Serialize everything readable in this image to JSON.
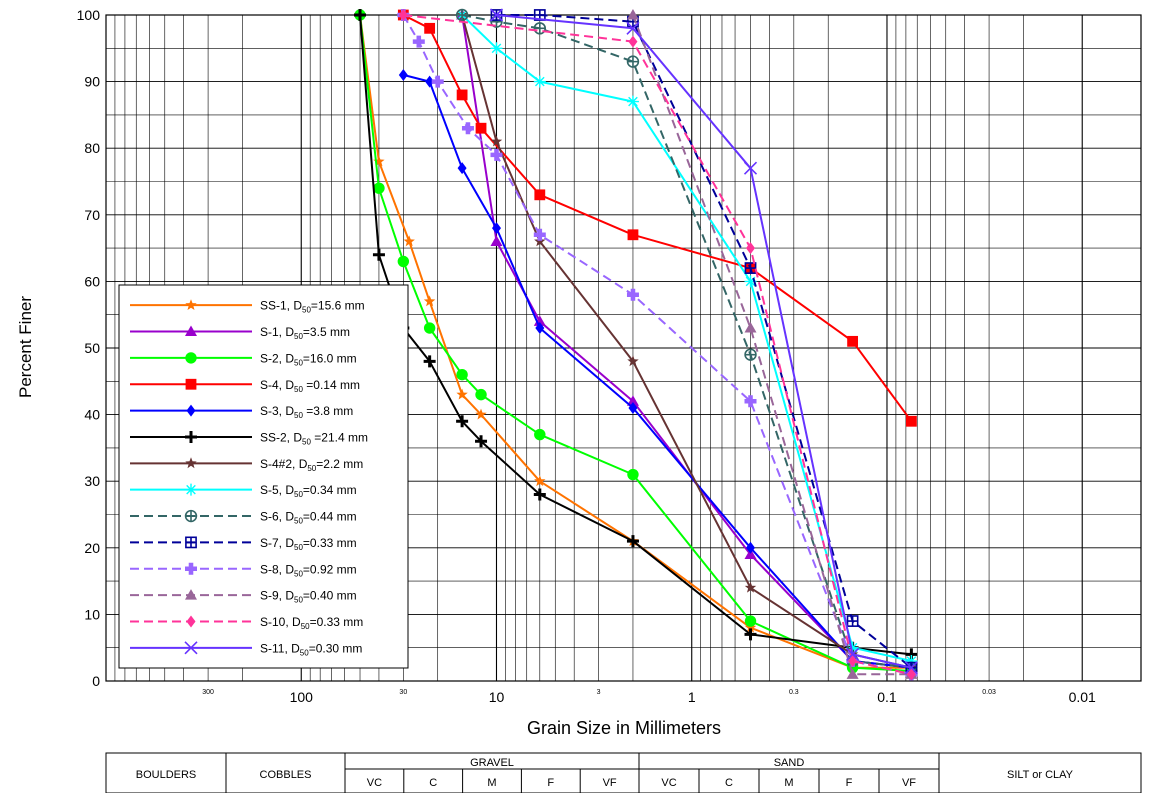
{
  "chart_data": {
    "type": "line",
    "ylabel": "Percent Finer",
    "xlabel": "Grain Size in Millimeters",
    "x_scale": "log",
    "x_reversed": true,
    "xlim": [
      1000,
      0.005
    ],
    "ylim": [
      0,
      100
    ],
    "y_ticks": [
      "0",
      "10",
      "20",
      "30",
      "40",
      "50",
      "60",
      "70",
      "80",
      "90",
      "100"
    ],
    "x_major_ticks": [
      {
        "value": 100,
        "label": "100"
      },
      {
        "value": 10,
        "label": "10"
      },
      {
        "value": 1,
        "label": "1"
      },
      {
        "value": 0.1,
        "label": "0.1"
      },
      {
        "value": 0.01,
        "label": "0.01"
      }
    ],
    "x_minor_ticks": [
      {
        "value": 300,
        "label": "300"
      },
      {
        "value": 30,
        "label": "30"
      },
      {
        "value": 3,
        "label": "3"
      },
      {
        "value": 0.3,
        "label": "0.3"
      },
      {
        "value": 0.03,
        "label": "0.03"
      }
    ],
    "grid": true,
    "legend_position": "bottom-left",
    "series": [
      {
        "name": "SS-1, D",
        "sub": "50",
        "suffix": "=15.6 mm",
        "color": "#ff7300",
        "dash": false,
        "marker": "star",
        "x": [
          50,
          40,
          28,
          22,
          15,
          12,
          6,
          2,
          0.5,
          0.15,
          0.075
        ],
        "y": [
          100,
          78,
          66,
          57,
          43,
          40,
          30,
          21,
          8,
          2,
          2
        ]
      },
      {
        "name": "S-1, D",
        "sub": "50",
        "suffix": "=3.5 mm",
        "color": "#9900cc",
        "dash": false,
        "marker": "triangle",
        "x": [
          15,
          10,
          6,
          2,
          0.5,
          0.15,
          0.075
        ],
        "y": [
          100,
          66,
          54,
          42,
          19,
          3,
          2
        ]
      },
      {
        "name": "S-2, D",
        "sub": "50",
        "suffix": "=16.0 mm",
        "color": "#00ff00",
        "dash": false,
        "marker": "circle",
        "x": [
          50,
          40,
          30,
          22,
          15,
          12,
          6,
          2,
          0.5,
          0.15,
          0.075
        ],
        "y": [
          100,
          74,
          63,
          53,
          46,
          43,
          37,
          31,
          9,
          2,
          1.5
        ]
      },
      {
        "name": "S-4, D",
        "sub": "50",
        "suffix": " =0.14 mm",
        "color": "#ff0000",
        "dash": false,
        "marker": "square",
        "x": [
          30,
          22,
          15,
          12,
          6,
          2,
          0.5,
          0.15,
          0.075
        ],
        "y": [
          100,
          98,
          88,
          83,
          73,
          67,
          62,
          51,
          39
        ]
      },
      {
        "name": "S-3, D",
        "sub": "50",
        "suffix": " =3.8 mm",
        "color": "#0000ff",
        "dash": false,
        "marker": "diamond",
        "x": [
          30,
          22,
          15,
          10,
          6,
          2,
          0.5,
          0.15,
          0.075
        ],
        "y": [
          91,
          90,
          77,
          68,
          53,
          41,
          20,
          3,
          2
        ]
      },
      {
        "name": "SS-2, D",
        "sub": "50",
        "suffix": " =21.4 mm",
        "color": "#000000",
        "dash": false,
        "marker": "plus",
        "x": [
          50,
          40,
          30,
          22,
          15,
          12,
          6,
          2,
          0.5,
          0.15,
          0.075
        ],
        "y": [
          100,
          64,
          53,
          48,
          39,
          36,
          28,
          21,
          7,
          5,
          4
        ]
      },
      {
        "name": "S-4#2, D",
        "sub": "50",
        "suffix": "=2.2 mm",
        "color": "#663333",
        "dash": false,
        "marker": "star",
        "x": [
          15,
          10,
          6,
          2,
          0.5,
          0.15,
          0.075
        ],
        "y": [
          100,
          81,
          66,
          48,
          14,
          4,
          2
        ]
      },
      {
        "name": "S-5, D",
        "sub": "50",
        "suffix": "=0.34 mm",
        "color": "#00ffff",
        "dash": false,
        "marker": "asterisk",
        "x": [
          15,
          10,
          6,
          2,
          0.5,
          0.15,
          0.075
        ],
        "y": [
          100,
          95,
          90,
          87,
          60,
          5,
          3
        ]
      },
      {
        "name": "S-6, D",
        "sub": "50",
        "suffix": "=0.44 mm",
        "color": "#336666",
        "dash": true,
        "marker": "circleplus",
        "x": [
          15,
          10,
          6,
          2,
          0.5,
          0.15,
          0.075
        ],
        "y": [
          100,
          99,
          98,
          93,
          49,
          3,
          2
        ]
      },
      {
        "name": "S-7, D",
        "sub": "50",
        "suffix": "=0.33 mm",
        "color": "#000099",
        "dash": true,
        "marker": "squareplus",
        "x": [
          10,
          6,
          2,
          0.5,
          0.15,
          0.075
        ],
        "y": [
          100,
          100,
          99,
          62,
          9,
          2
        ]
      },
      {
        "name": "S-8, D",
        "sub": "50",
        "suffix": "=0.92 mm",
        "color": "#9966ff",
        "dash": true,
        "marker": "cross",
        "x": [
          30,
          25,
          20,
          14,
          10,
          6,
          2,
          0.5,
          0.15,
          0.075
        ],
        "y": [
          100,
          96,
          90,
          83,
          79,
          67,
          58,
          42,
          3,
          1
        ]
      },
      {
        "name": "S-9, D",
        "sub": "50",
        "suffix": "=0.40 mm",
        "color": "#996699",
        "dash": true,
        "marker": "triangle",
        "x": [
          2,
          0.5,
          0.15,
          0.075
        ],
        "y": [
          100,
          53,
          1,
          1
        ]
      },
      {
        "name": "S-10, D",
        "sub": "50",
        "suffix": "=0.33 mm",
        "color": "#ff3399",
        "dash": true,
        "marker": "diamond",
        "x": [
          30,
          2,
          0.5,
          0.15,
          0.075
        ],
        "y": [
          100,
          96,
          65,
          3,
          1
        ]
      },
      {
        "name": "S-11, D",
        "sub": "50",
        "suffix": "=0.30 mm",
        "color": "#6633ff",
        "dash": false,
        "marker": "x",
        "x": [
          10,
          2,
          0.5,
          0.15,
          0.075
        ],
        "y": [
          100,
          98,
          77,
          4,
          2
        ]
      }
    ]
  },
  "classification": {
    "boulders": "BOULDERS",
    "cobbles": "COBBLES",
    "gravel": "GRAVEL",
    "sand": "SAND",
    "silt_clay": "SILT or CLAY",
    "gravel_sub": [
      "VC",
      "C",
      "M",
      "F",
      "VF"
    ],
    "sand_sub": [
      "VC",
      "C",
      "M",
      "F",
      "VF"
    ]
  }
}
